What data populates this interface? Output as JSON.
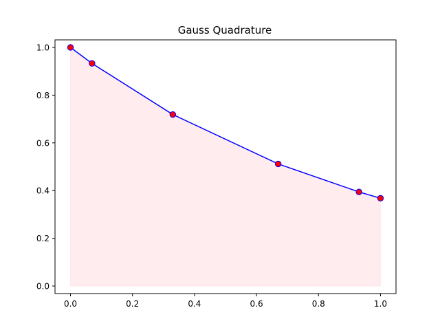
{
  "chart_data": {
    "type": "line",
    "title": "Gauss Quadrature",
    "xlabel": "",
    "ylabel": "",
    "xlim": [
      -0.05,
      1.05
    ],
    "ylim": [
      -0.0316,
      1.0316
    ],
    "xticks": [
      0.0,
      0.2,
      0.4,
      0.6,
      0.8,
      1.0
    ],
    "xtick_labels": [
      "0.0",
      "0.2",
      "0.4",
      "0.6",
      "0.8",
      "1.0"
    ],
    "yticks": [
      0.0,
      0.2,
      0.4,
      0.6,
      0.8,
      1.0
    ],
    "ytick_labels": [
      "0.0",
      "0.2",
      "0.4",
      "0.6",
      "0.8",
      "1.0"
    ],
    "grid": false,
    "series": [
      {
        "kind": "line+markers",
        "x": [
          0.0,
          0.0694,
          0.33,
          0.67,
          0.9306,
          1.0
        ],
        "y": [
          1.0,
          0.933,
          0.7189,
          0.5117,
          0.3943,
          0.3679
        ],
        "line_color": "#0000ff",
        "marker_color": "#ff0000"
      }
    ],
    "fill_under": {
      "color": "#ffc0cb",
      "opacity": 0.3
    }
  }
}
